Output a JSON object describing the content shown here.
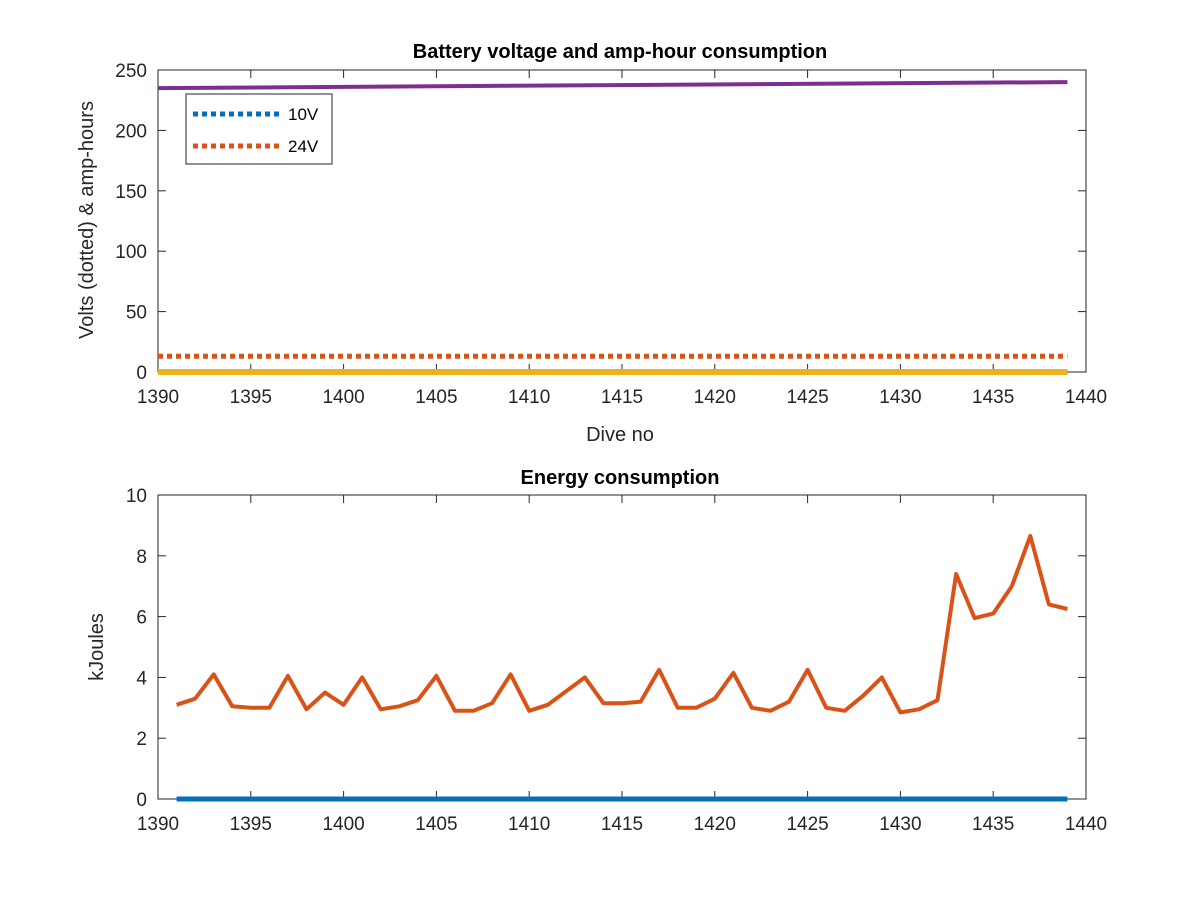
{
  "chart_data": [
    {
      "type": "line",
      "title": "Battery voltage and amp-hour consumption",
      "xlabel": "Dive no",
      "ylabel": "Volts (dotted) & amp-hours",
      "xlim": [
        1390,
        1440
      ],
      "ylim": [
        0,
        250
      ],
      "xticks": [
        1390,
        1395,
        1400,
        1405,
        1410,
        1415,
        1420,
        1425,
        1430,
        1435,
        1440
      ],
      "yticks": [
        0,
        50,
        100,
        150,
        200,
        250
      ],
      "legend_position": "top-left",
      "series": [
        {
          "name": "10V",
          "style": "dotted",
          "color": "#0072BD",
          "x": [
            1390,
            1439
          ],
          "y": [
            0,
            0
          ]
        },
        {
          "name": "24V",
          "style": "dotted",
          "color": "#D95319",
          "x": [
            1390,
            1439
          ],
          "y": [
            13,
            13
          ]
        },
        {
          "style": "solid",
          "color": "#EDB120",
          "x": [
            1390,
            1439
          ],
          "y": [
            0,
            0
          ]
        },
        {
          "style": "solid",
          "color": "#7E2F8E",
          "x": [
            1390,
            1439
          ],
          "y": [
            235,
            240
          ]
        }
      ]
    },
    {
      "type": "line",
      "title": "Energy consumption",
      "xlabel": "",
      "ylabel": "kJoules",
      "xlim": [
        1390,
        1440
      ],
      "ylim": [
        0,
        10
      ],
      "xticks": [
        1390,
        1395,
        1400,
        1405,
        1410,
        1415,
        1420,
        1425,
        1430,
        1435,
        1440
      ],
      "yticks": [
        0,
        2,
        4,
        6,
        8,
        10
      ],
      "series": [
        {
          "style": "solid",
          "color": "#0072BD",
          "x": [
            1391,
            1439
          ],
          "y": [
            0,
            0
          ]
        },
        {
          "style": "solid",
          "color": "#D95319",
          "x": [
            1391,
            1392,
            1393,
            1394,
            1395,
            1396,
            1397,
            1398,
            1399,
            1400,
            1401,
            1402,
            1403,
            1404,
            1405,
            1406,
            1407,
            1408,
            1409,
            1410,
            1411,
            1412,
            1413,
            1414,
            1415,
            1416,
            1417,
            1418,
            1419,
            1420,
            1421,
            1422,
            1423,
            1424,
            1425,
            1426,
            1427,
            1428,
            1429,
            1430,
            1431,
            1432,
            1433,
            1434,
            1435,
            1436,
            1437,
            1438,
            1439
          ],
          "y": [
            3.1,
            3.3,
            4.1,
            3.05,
            3.0,
            3.0,
            4.05,
            2.95,
            3.5,
            3.1,
            4.0,
            2.95,
            3.05,
            3.25,
            4.05,
            2.9,
            2.9,
            3.15,
            4.1,
            2.9,
            3.1,
            3.55,
            4.0,
            3.15,
            3.15,
            3.2,
            4.25,
            3.0,
            3.0,
            3.3,
            4.15,
            3.0,
            2.9,
            3.2,
            4.25,
            3.0,
            2.9,
            3.4,
            4.0,
            2.85,
            2.95,
            3.25,
            7.4,
            5.95,
            6.1,
            7.0,
            8.65,
            6.4,
            6.25
          ]
        }
      ]
    }
  ]
}
